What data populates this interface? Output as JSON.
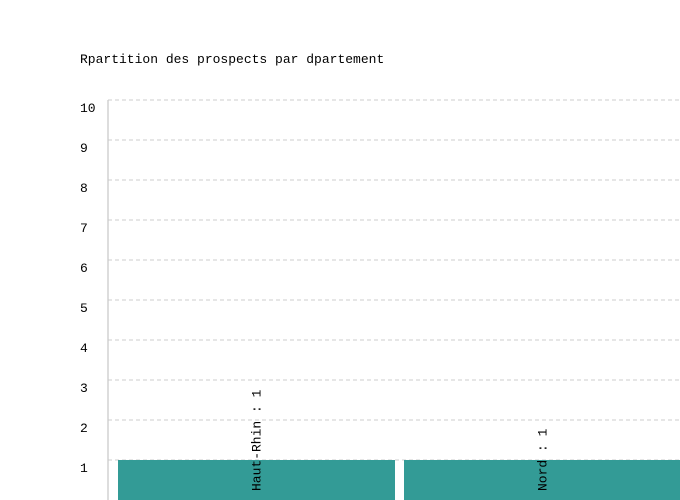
{
  "chart_data": {
    "type": "bar",
    "title": "Rpartition des prospects par dpartement",
    "categories": [
      "Haut-Rhin",
      "Nord"
    ],
    "values": [
      1,
      1
    ],
    "value_labels": [
      "Haut-Rhin : 1",
      "Nord : 1"
    ],
    "color": "#339b96",
    "ylim": [
      0,
      10
    ],
    "yticks": [
      1,
      2,
      3,
      4,
      5,
      6,
      7,
      8,
      9,
      10
    ],
    "grid": true
  }
}
